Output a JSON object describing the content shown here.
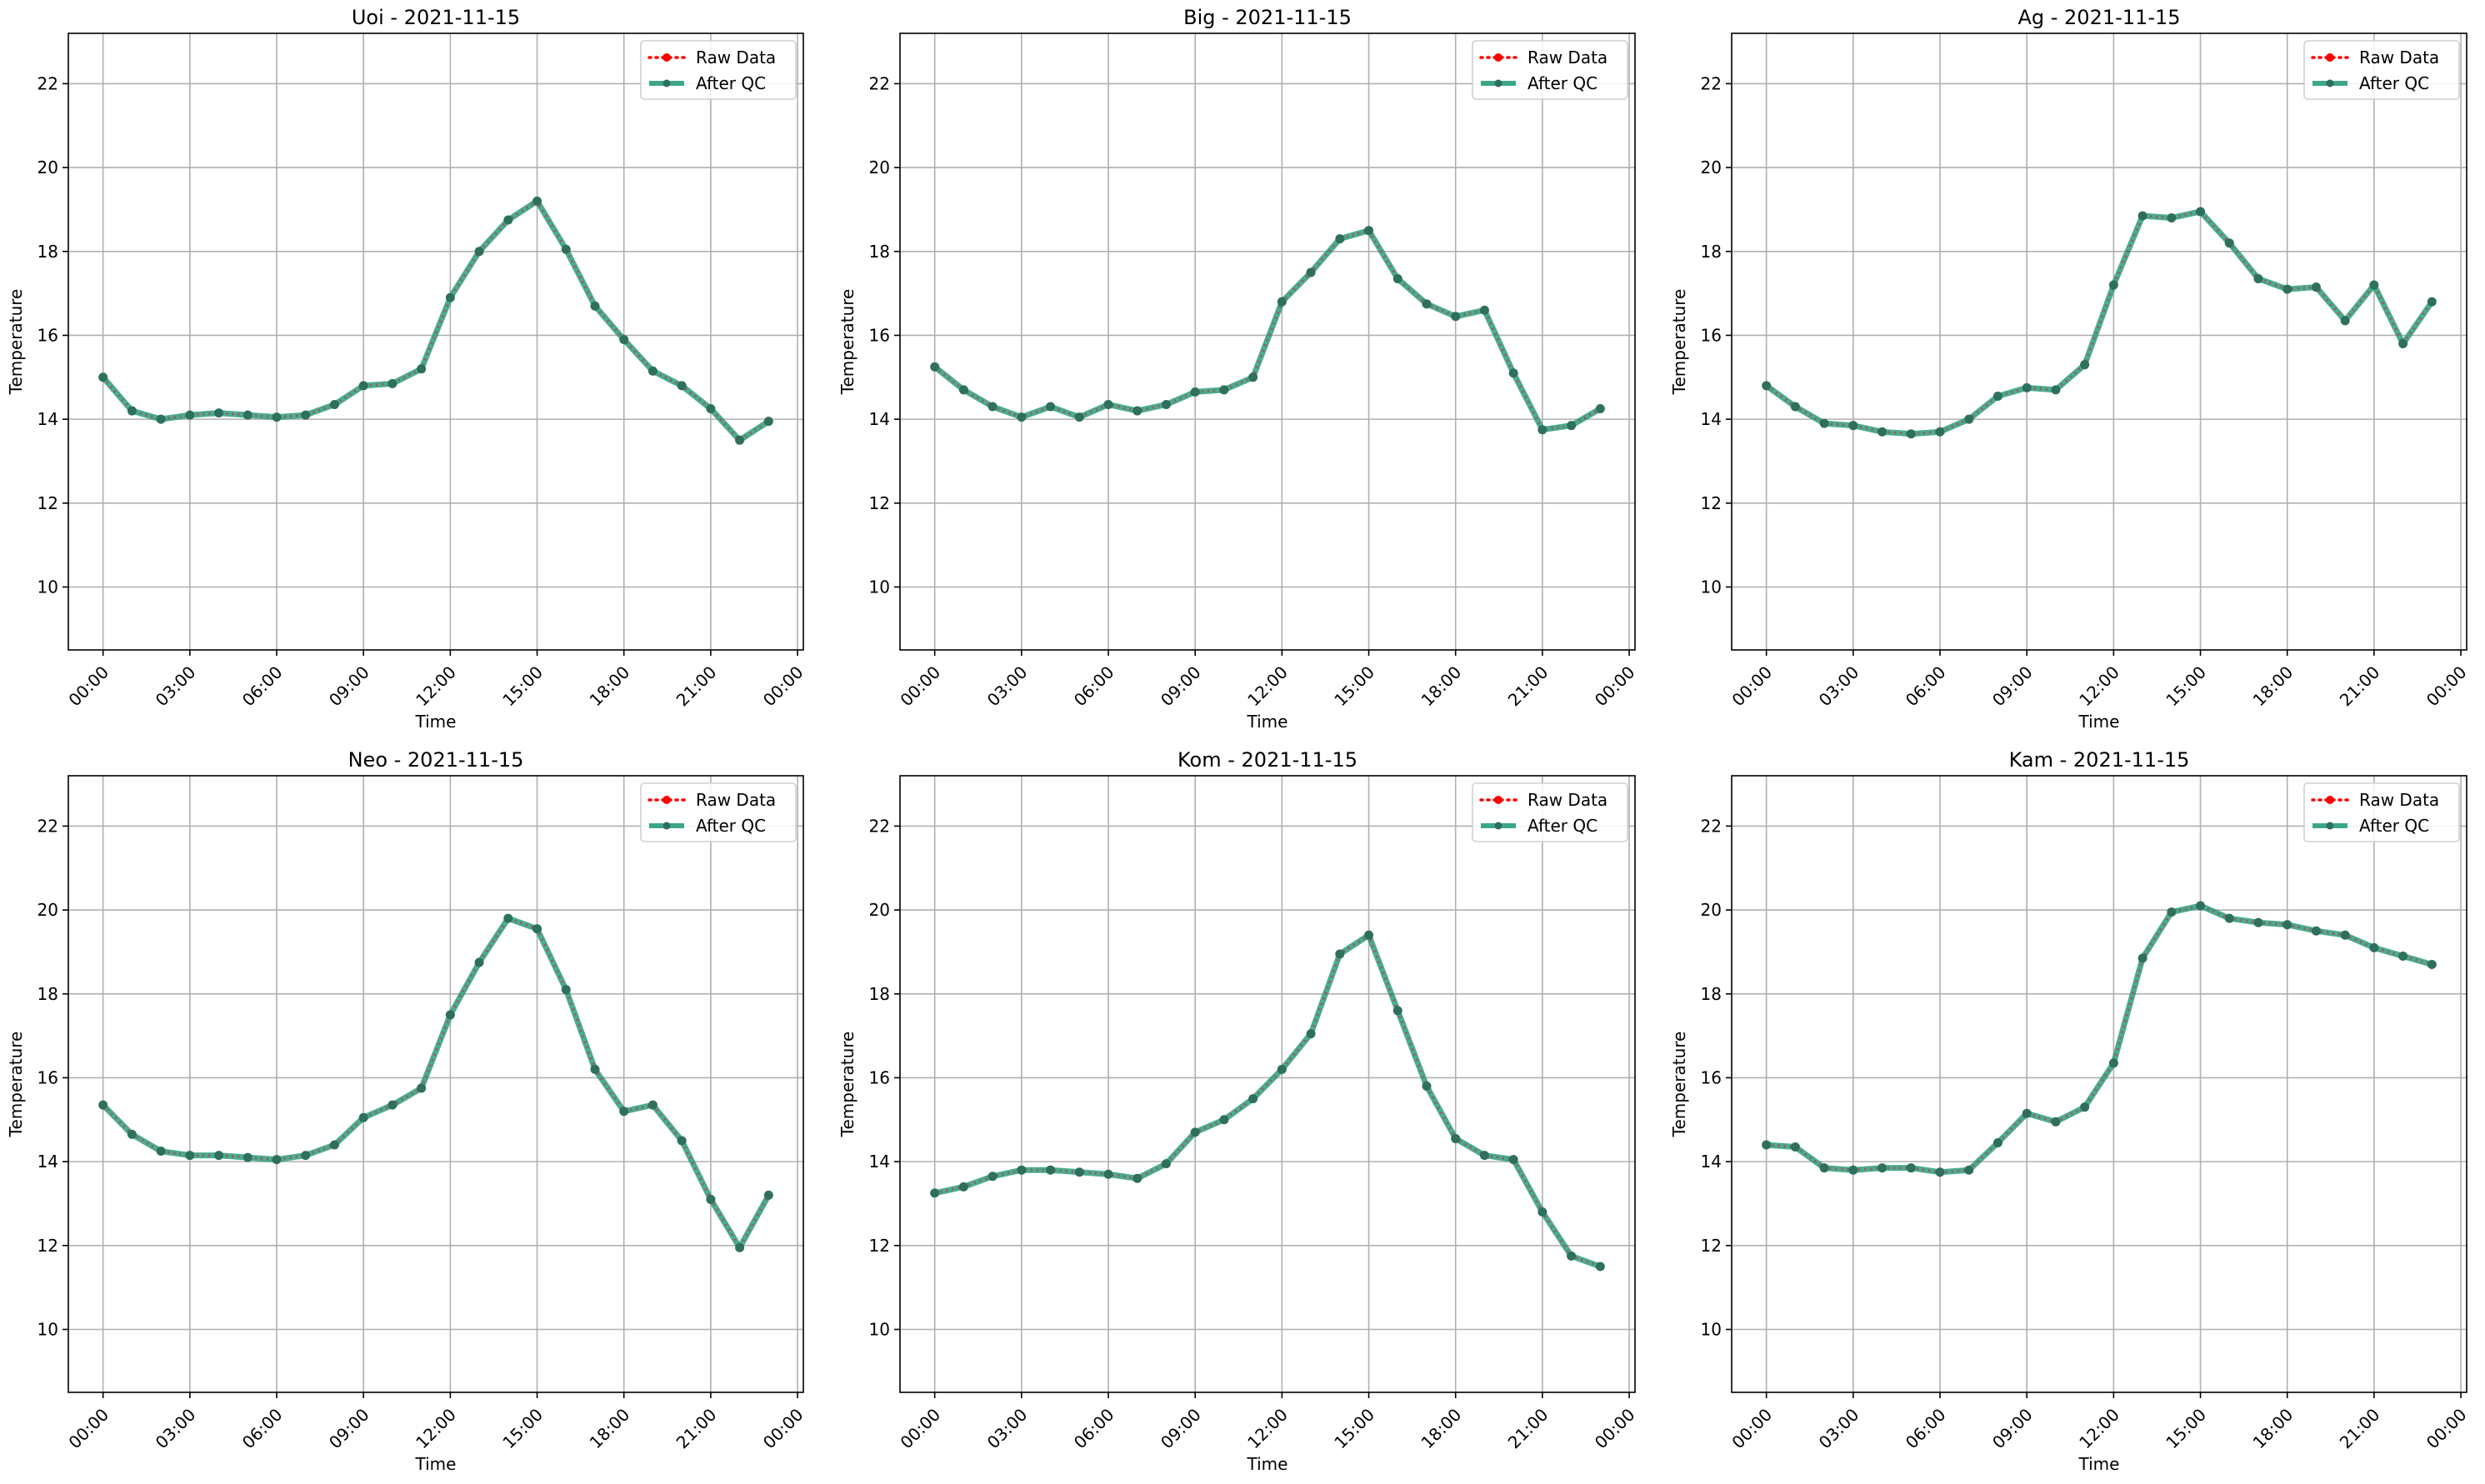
{
  "legend": {
    "raw_label": "Raw Data",
    "qc_label": "After QC",
    "raw_color": "#ff0000",
    "qc_color": "#2a9d7c",
    "placement": "top-right"
  },
  "axis_common": {
    "xlabel": "Time",
    "ylabel": "Temperature",
    "xticks": [
      "00:00",
      "03:00",
      "06:00",
      "09:00",
      "12:00",
      "15:00",
      "18:00",
      "21:00",
      "00:00"
    ],
    "yticks": [
      10,
      12,
      14,
      16,
      18,
      20,
      22
    ],
    "ylim": [
      8.5,
      23.2
    ],
    "xlim_hours": [
      -1.2,
      24.2
    ],
    "grid": true
  },
  "chart_data": [
    {
      "type": "line",
      "title": "Uoi - 2021-11-15",
      "x": [
        "00:00",
        "01:00",
        "02:00",
        "03:00",
        "04:00",
        "05:00",
        "06:00",
        "07:00",
        "08:00",
        "09:00",
        "10:00",
        "11:00",
        "12:00",
        "13:00",
        "14:00",
        "15:00",
        "16:00",
        "17:00",
        "18:00",
        "19:00",
        "20:00",
        "21:00",
        "22:00",
        "23:00"
      ],
      "series": [
        {
          "name": "Raw Data",
          "values": [
            15.0,
            14.2,
            14.0,
            14.1,
            14.15,
            14.1,
            14.05,
            14.1,
            14.35,
            14.8,
            14.85,
            15.2,
            16.9,
            18.0,
            18.75,
            19.2,
            18.05,
            16.7,
            15.9,
            15.15,
            14.8,
            14.25,
            13.5,
            13.95
          ]
        },
        {
          "name": "After QC",
          "values": [
            15.0,
            14.2,
            14.0,
            14.1,
            14.15,
            14.1,
            14.05,
            14.1,
            14.35,
            14.8,
            14.85,
            15.2,
            16.9,
            18.0,
            18.75,
            19.2,
            18.05,
            16.7,
            15.9,
            15.15,
            14.8,
            14.25,
            13.5,
            13.95
          ]
        }
      ]
    },
    {
      "type": "line",
      "title": "Big - 2021-11-15",
      "x": [
        "00:00",
        "01:00",
        "02:00",
        "03:00",
        "04:00",
        "05:00",
        "06:00",
        "07:00",
        "08:00",
        "09:00",
        "10:00",
        "11:00",
        "12:00",
        "13:00",
        "14:00",
        "15:00",
        "16:00",
        "17:00",
        "18:00",
        "19:00",
        "20:00",
        "21:00",
        "22:00",
        "23:00"
      ],
      "series": [
        {
          "name": "Raw Data",
          "values": [
            15.25,
            14.7,
            14.3,
            14.05,
            14.3,
            14.05,
            14.35,
            14.2,
            14.35,
            14.65,
            14.7,
            15.0,
            16.8,
            17.5,
            18.3,
            18.5,
            17.35,
            16.75,
            16.45,
            16.6,
            15.1,
            13.75,
            13.85,
            14.25
          ]
        },
        {
          "name": "After QC",
          "values": [
            15.25,
            14.7,
            14.3,
            14.05,
            14.3,
            14.05,
            14.35,
            14.2,
            14.35,
            14.65,
            14.7,
            15.0,
            16.8,
            17.5,
            18.3,
            18.5,
            17.35,
            16.75,
            16.45,
            16.6,
            15.1,
            13.75,
            13.85,
            14.25
          ]
        }
      ]
    },
    {
      "type": "line",
      "title": "Ag - 2021-11-15",
      "x": [
        "00:00",
        "01:00",
        "02:00",
        "03:00",
        "04:00",
        "05:00",
        "06:00",
        "07:00",
        "08:00",
        "09:00",
        "10:00",
        "11:00",
        "12:00",
        "13:00",
        "14:00",
        "15:00",
        "16:00",
        "17:00",
        "18:00",
        "19:00",
        "20:00",
        "21:00",
        "22:00",
        "23:00"
      ],
      "series": [
        {
          "name": "Raw Data",
          "values": [
            14.8,
            14.3,
            13.9,
            13.85,
            13.7,
            13.65,
            13.7,
            14.0,
            14.55,
            14.75,
            14.7,
            15.3,
            17.2,
            18.85,
            18.8,
            18.95,
            18.2,
            17.35,
            17.1,
            17.15,
            16.35,
            17.2,
            15.8,
            16.8
          ]
        },
        {
          "name": "After QC",
          "values": [
            14.8,
            14.3,
            13.9,
            13.85,
            13.7,
            13.65,
            13.7,
            14.0,
            14.55,
            14.75,
            14.7,
            15.3,
            17.2,
            18.85,
            18.8,
            18.95,
            18.2,
            17.35,
            17.1,
            17.15,
            16.35,
            17.2,
            15.8,
            16.8
          ]
        }
      ]
    },
    {
      "type": "line",
      "title": "Neo - 2021-11-15",
      "x": [
        "00:00",
        "01:00",
        "02:00",
        "03:00",
        "04:00",
        "05:00",
        "06:00",
        "07:00",
        "08:00",
        "09:00",
        "10:00",
        "11:00",
        "12:00",
        "13:00",
        "14:00",
        "15:00",
        "16:00",
        "17:00",
        "18:00",
        "19:00",
        "20:00",
        "21:00",
        "22:00",
        "23:00"
      ],
      "series": [
        {
          "name": "Raw Data",
          "values": [
            15.35,
            14.65,
            14.25,
            14.15,
            14.15,
            14.1,
            14.05,
            14.15,
            14.4,
            15.05,
            15.35,
            15.75,
            17.5,
            18.75,
            19.8,
            19.55,
            18.1,
            16.2,
            15.2,
            15.35,
            14.5,
            13.1,
            11.95,
            13.2
          ]
        },
        {
          "name": "After QC",
          "values": [
            15.35,
            14.65,
            14.25,
            14.15,
            14.15,
            14.1,
            14.05,
            14.15,
            14.4,
            15.05,
            15.35,
            15.75,
            17.5,
            18.75,
            19.8,
            19.55,
            18.1,
            16.2,
            15.2,
            15.35,
            14.5,
            13.1,
            11.95,
            13.2
          ]
        }
      ]
    },
    {
      "type": "line",
      "title": "Kom - 2021-11-15",
      "x": [
        "00:00",
        "01:00",
        "02:00",
        "03:00",
        "04:00",
        "05:00",
        "06:00",
        "07:00",
        "08:00",
        "09:00",
        "10:00",
        "11:00",
        "12:00",
        "13:00",
        "14:00",
        "15:00",
        "16:00",
        "17:00",
        "18:00",
        "19:00",
        "20:00",
        "21:00",
        "22:00",
        "23:00"
      ],
      "series": [
        {
          "name": "Raw Data",
          "values": [
            13.25,
            13.4,
            13.65,
            13.8,
            13.8,
            13.75,
            13.7,
            13.6,
            13.95,
            14.7,
            15.0,
            15.5,
            16.2,
            17.05,
            18.95,
            19.4,
            17.6,
            15.8,
            14.55,
            14.15,
            14.05,
            12.8,
            11.75,
            11.5
          ]
        },
        {
          "name": "After QC",
          "values": [
            13.25,
            13.4,
            13.65,
            13.8,
            13.8,
            13.75,
            13.7,
            13.6,
            13.95,
            14.7,
            15.0,
            15.5,
            16.2,
            17.05,
            18.95,
            19.4,
            17.6,
            15.8,
            14.55,
            14.15,
            14.05,
            12.8,
            11.75,
            11.5
          ]
        }
      ]
    },
    {
      "type": "line",
      "title": "Kam - 2021-11-15",
      "x": [
        "00:00",
        "01:00",
        "02:00",
        "03:00",
        "04:00",
        "05:00",
        "06:00",
        "07:00",
        "08:00",
        "09:00",
        "10:00",
        "11:00",
        "12:00",
        "13:00",
        "14:00",
        "15:00",
        "16:00",
        "17:00",
        "18:00",
        "19:00",
        "20:00",
        "21:00",
        "22:00",
        "23:00"
      ],
      "series": [
        {
          "name": "Raw Data",
          "values": [
            14.4,
            14.35,
            13.85,
            13.8,
            13.85,
            13.85,
            13.75,
            13.8,
            14.45,
            15.15,
            14.95,
            15.3,
            16.35,
            18.85,
            19.95,
            20.1,
            19.8,
            19.7,
            19.65,
            19.5,
            19.4,
            19.1,
            18.9,
            18.7
          ]
        },
        {
          "name": "After QC",
          "values": [
            14.4,
            14.35,
            13.85,
            13.8,
            13.85,
            13.85,
            13.75,
            13.8,
            14.45,
            15.15,
            14.95,
            15.3,
            16.35,
            18.85,
            19.95,
            20.1,
            19.8,
            19.7,
            19.65,
            19.5,
            19.4,
            19.1,
            18.9,
            18.7
          ]
        }
      ]
    }
  ]
}
